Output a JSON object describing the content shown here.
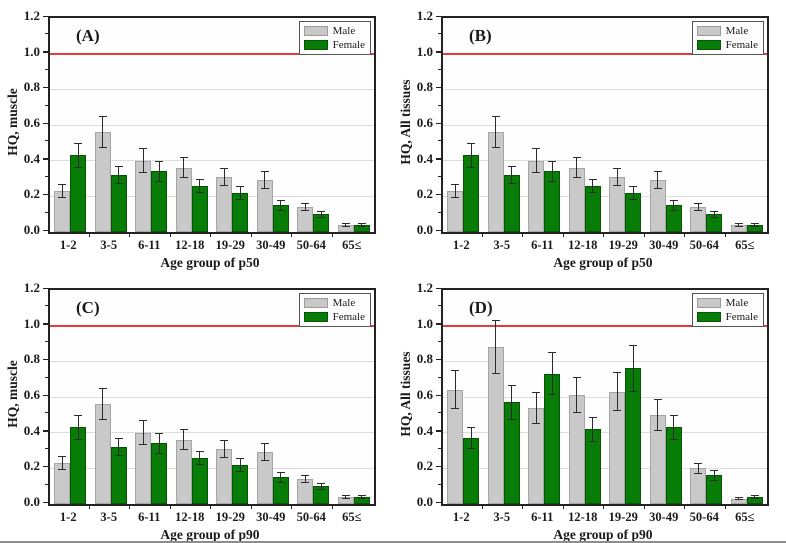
{
  "figure": {
    "legend": {
      "male_label": "Male",
      "female_label": "Female"
    },
    "colors": {
      "male_bar": "#c9c9c9",
      "female_bar": "#077d07",
      "reference_line": "#e23b3b",
      "gridline": "#dcdcdc",
      "frame": "#222222",
      "error_bar": "#2b2b2b"
    }
  },
  "chart_data": [
    {
      "type": "bar",
      "panel_label": "(A)",
      "ylabel": "HQ, muscle",
      "xlabel": "Age group of p50",
      "ylim": [
        0,
        1.2
      ],
      "yticks": [
        "0.0",
        "0.2",
        "0.4",
        "0.6",
        "0.8",
        "1.0",
        "1.2"
      ],
      "reference_line": 1.0,
      "grid": true,
      "legend_position": "top-right",
      "categories": [
        "1-2",
        "3-5",
        "6-11",
        "12-18",
        "19-29",
        "30-49",
        "50-64",
        "65≤"
      ],
      "series": [
        {
          "name": "Male",
          "values": [
            0.23,
            0.56,
            0.4,
            0.36,
            0.31,
            0.29,
            0.14,
            0.04
          ],
          "errors": [
            0.04,
            0.09,
            0.07,
            0.06,
            0.05,
            0.05,
            0.02,
            0.01
          ]
        },
        {
          "name": "Female",
          "values": [
            0.43,
            0.32,
            0.34,
            0.26,
            0.22,
            0.15,
            0.1,
            0.04
          ],
          "errors": [
            0.07,
            0.05,
            0.06,
            0.04,
            0.04,
            0.03,
            0.02,
            0.01
          ]
        }
      ]
    },
    {
      "type": "bar",
      "panel_label": "(B)",
      "ylabel": "HQ, All tissues",
      "xlabel": "Age group of p50",
      "ylim": [
        0,
        1.2
      ],
      "yticks": [
        "0.0",
        "0.2",
        "0.4",
        "0.6",
        "0.8",
        "1.0",
        "1.2"
      ],
      "reference_line": 1.0,
      "grid": true,
      "legend_position": "top-right",
      "categories": [
        "1-2",
        "3-5",
        "6-11",
        "12-18",
        "19-29",
        "30-49",
        "50-64",
        "65≤"
      ],
      "series": [
        {
          "name": "Male",
          "values": [
            0.23,
            0.56,
            0.4,
            0.36,
            0.31,
            0.29,
            0.14,
            0.04
          ],
          "errors": [
            0.04,
            0.09,
            0.07,
            0.06,
            0.05,
            0.05,
            0.02,
            0.01
          ]
        },
        {
          "name": "Female",
          "values": [
            0.43,
            0.32,
            0.34,
            0.26,
            0.22,
            0.15,
            0.1,
            0.04
          ],
          "errors": [
            0.07,
            0.05,
            0.06,
            0.04,
            0.04,
            0.03,
            0.02,
            0.01
          ]
        }
      ]
    },
    {
      "type": "bar",
      "panel_label": "(C)",
      "ylabel": "HQ, muscle",
      "xlabel": "Age group of p90",
      "ylim": [
        0,
        1.2
      ],
      "yticks": [
        "0.0",
        "0.2",
        "0.4",
        "0.6",
        "0.8",
        "1.0",
        "1.2"
      ],
      "reference_line": 1.0,
      "grid": true,
      "legend_position": "top-right",
      "categories": [
        "1-2",
        "3-5",
        "6-11",
        "12-18",
        "19-29",
        "30-49",
        "50-64",
        "65≤"
      ],
      "series": [
        {
          "name": "Male",
          "values": [
            0.23,
            0.56,
            0.4,
            0.36,
            0.31,
            0.29,
            0.14,
            0.04
          ],
          "errors": [
            0.04,
            0.09,
            0.07,
            0.06,
            0.05,
            0.05,
            0.02,
            0.01
          ]
        },
        {
          "name": "Female",
          "values": [
            0.43,
            0.32,
            0.34,
            0.26,
            0.22,
            0.15,
            0.1,
            0.04
          ],
          "errors": [
            0.07,
            0.05,
            0.06,
            0.04,
            0.04,
            0.03,
            0.02,
            0.01
          ]
        }
      ]
    },
    {
      "type": "bar",
      "panel_label": "(D)",
      "ylabel": "HQ, All tissues",
      "xlabel": "Age group of p90",
      "ylim": [
        0,
        1.2
      ],
      "yticks": [
        "0.0",
        "0.2",
        "0.4",
        "0.6",
        "0.8",
        "1.0",
        "1.2"
      ],
      "reference_line": 1.0,
      "grid": true,
      "legend_position": "top-right",
      "categories": [
        "1-2",
        "3-5",
        "6-11",
        "12-18",
        "19-29",
        "30-49",
        "50-64",
        "65≤"
      ],
      "series": [
        {
          "name": "Male",
          "values": [
            0.64,
            0.88,
            0.54,
            0.61,
            0.63,
            0.5,
            0.2,
            0.03
          ],
          "errors": [
            0.11,
            0.15,
            0.09,
            0.1,
            0.11,
            0.09,
            0.03,
            0.01
          ]
        },
        {
          "name": "Female",
          "values": [
            0.37,
            0.57,
            0.73,
            0.42,
            0.76,
            0.43,
            0.16,
            0.04
          ],
          "errors": [
            0.06,
            0.1,
            0.12,
            0.07,
            0.13,
            0.07,
            0.03,
            0.01
          ]
        }
      ]
    }
  ]
}
